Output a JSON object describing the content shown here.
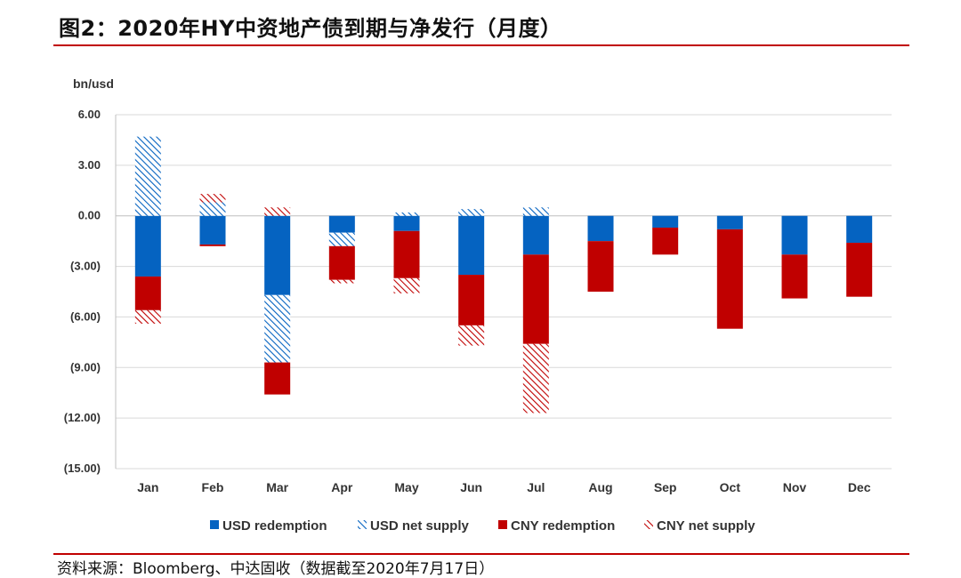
{
  "header": {
    "title": "图2：2020年HY中资地产债到期与净发行（月度）"
  },
  "footer": {
    "source": "资料来源：Bloomberg、中达固收（数据截至2020年7月17日）"
  },
  "chart_data": {
    "type": "bar",
    "stacked": true,
    "title": "图2：2020年HY中资地产债到期与净发行（月度）",
    "unit_label": "bn/usd",
    "xlabel": "",
    "ylabel": "",
    "categories": [
      "Jan",
      "Feb",
      "Mar",
      "Apr",
      "May",
      "Jun",
      "Jul",
      "Aug",
      "Sep",
      "Oct",
      "Nov",
      "Dec"
    ],
    "ylim": [
      -15,
      6
    ],
    "yticks": [
      6,
      3,
      0,
      -3,
      -6,
      -9,
      -12,
      -15
    ],
    "ytick_labels": [
      "6.00",
      "3.00",
      "0.00",
      "(3.00)",
      "(6.00)",
      "(9.00)",
      "(12.00)",
      "(15.00)"
    ],
    "grid": true,
    "legend_position": "bottom",
    "colors": {
      "usd": "#0563c1",
      "cny": "#c00000"
    },
    "series": [
      {
        "name": "USD redemption",
        "color": "#0563c1",
        "pattern": "solid",
        "values": [
          -3.6,
          -1.7,
          -4.7,
          -1.0,
          -0.9,
          -3.5,
          -2.3,
          -1.5,
          -0.7,
          -0.8,
          -2.3,
          -1.6
        ]
      },
      {
        "name": "USD net supply",
        "color": "#0563c1",
        "pattern": "hatched",
        "values": [
          4.7,
          0.8,
          -4.0,
          -0.8,
          0.2,
          0.4,
          0.5,
          0,
          0,
          0,
          0,
          0
        ]
      },
      {
        "name": "CNY redemption",
        "color": "#c00000",
        "pattern": "solid",
        "values": [
          -2.0,
          -0.1,
          -1.9,
          -2.0,
          -2.8,
          -3.0,
          -5.3,
          -3.0,
          -1.6,
          -5.9,
          -2.6,
          -3.2
        ]
      },
      {
        "name": "CNY net supply",
        "color": "#c00000",
        "pattern": "hatched",
        "values": [
          -0.8,
          0.5,
          0.5,
          -0.2,
          -0.9,
          -1.2,
          -4.1,
          0,
          0,
          0,
          0,
          0
        ]
      }
    ]
  }
}
